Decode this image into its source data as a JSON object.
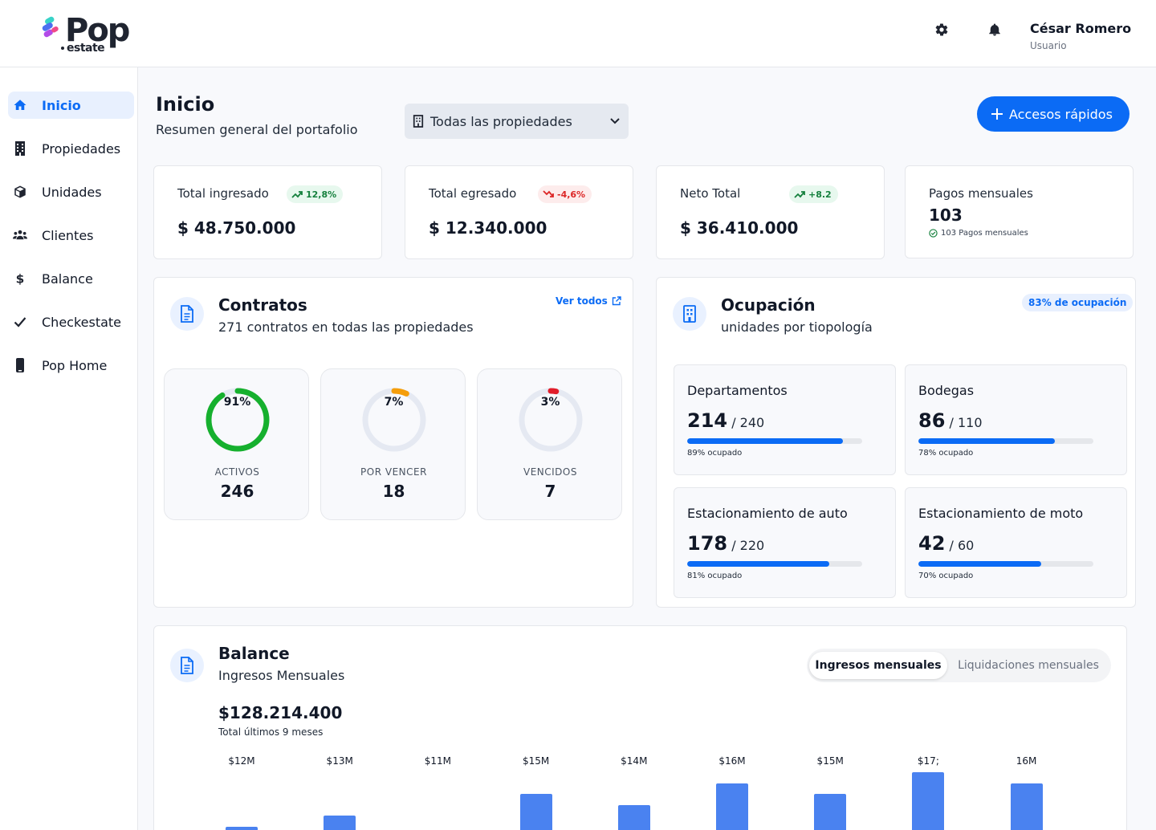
{
  "brand": {
    "name": "Pop",
    "sub": "estate"
  },
  "header": {
    "user_name": "César Romero",
    "user_role": "Usuario"
  },
  "sidebar": {
    "items": [
      {
        "label": "Inicio",
        "icon": "home-icon",
        "active": true
      },
      {
        "label": "Propiedades",
        "icon": "building-icon"
      },
      {
        "label": "Unidades",
        "icon": "cube-icon"
      },
      {
        "label": "Clientes",
        "icon": "users-icon"
      },
      {
        "label": "Balance",
        "icon": "dollar-icon"
      },
      {
        "label": "Checkestate",
        "icon": "check-icon"
      },
      {
        "label": "Pop Home",
        "icon": "phone-icon"
      }
    ]
  },
  "page": {
    "title": "Inicio",
    "subtitle": "Resumen general del portafolio",
    "property_filter": "Todas las propiedades",
    "quick_access": "Accesos rápidos"
  },
  "kpis": [
    {
      "label": "Total ingresado",
      "badge": "12,8%",
      "trend": "up",
      "value": "$ 48.750.000"
    },
    {
      "label": "Total egresado",
      "badge": "-4,6%",
      "trend": "down",
      "value": "$ 12.340.000"
    },
    {
      "label": "Neto Total",
      "badge": "+8.2",
      "trend": "up",
      "value": "$ 36.410.000"
    },
    {
      "label": "Pagos mensuales",
      "value": "103",
      "note": "103 Pagos mensuales"
    }
  ],
  "contracts": {
    "title": "Contratos",
    "subtitle": "271 contratos en todas las propiedades",
    "link": "Ver todos",
    "items": [
      {
        "pct_label": "91%",
        "pct": 0.91,
        "label": "ACTIVOS",
        "value": "246",
        "color": "#16b02e"
      },
      {
        "pct_label": "7%",
        "pct": 0.07,
        "label": "POR VENCER",
        "value": "18",
        "color": "#f59e0b"
      },
      {
        "pct_label": "3%",
        "pct": 0.03,
        "label": "VENCIDOS",
        "value": "7",
        "color": "#e11d2a"
      }
    ]
  },
  "occupancy": {
    "title": "Ocupación",
    "subtitle": "unidades por tiopología",
    "badge": "83% de ocupación",
    "items": [
      {
        "name": "Departamentos",
        "count": "214",
        "total": "/ 240",
        "pct": 0.89,
        "pct_label": "89% ocupado"
      },
      {
        "name": "Bodegas",
        "count": "86",
        "total": "/ 110",
        "pct": 0.78,
        "pct_label": "78% ocupado"
      },
      {
        "name": "Estacionamiento de auto",
        "count": "178",
        "total": "/ 220",
        "pct": 0.81,
        "pct_label": "81% ocupado"
      },
      {
        "name": "Estacionamiento de moto",
        "count": "42",
        "total": "/ 60",
        "pct": 0.7,
        "pct_label": "70% ocupado"
      }
    ]
  },
  "balance": {
    "title": "Balance",
    "subtitle": "Ingresos Mensuales",
    "tabs": [
      "Ingresos mensuales",
      "Liquidaciones mensuales"
    ],
    "total": "$128.214.400",
    "total_note": "Total últimos 9 meses"
  },
  "chart_data": {
    "type": "bar",
    "title": "",
    "data_labels": [
      "$12M",
      "$13M",
      "$11M",
      "$15M",
      "$14M",
      "$16M",
      "$15M",
      "$17;",
      "16M"
    ],
    "values": [
      12,
      13,
      11,
      15,
      14,
      16,
      15,
      17,
      16
    ],
    "bars_visible": [
      true,
      true,
      false,
      true,
      true,
      true,
      true,
      true,
      true
    ],
    "color": "#4a82f0"
  },
  "colors": {
    "accent": "#0b6bf5",
    "positive": "#15803d",
    "negative": "#dc2626"
  }
}
